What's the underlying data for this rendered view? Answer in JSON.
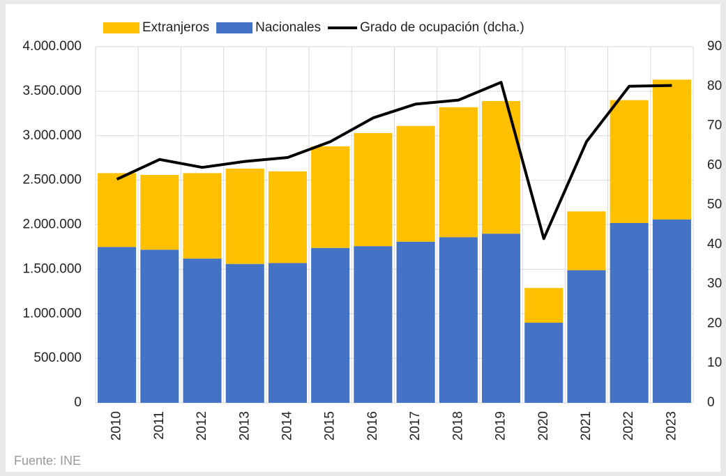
{
  "chart_data": {
    "type": "bar",
    "categories": [
      "2010",
      "2011",
      "2012",
      "2013",
      "2014",
      "2015",
      "2016",
      "2017",
      "2018",
      "2019",
      "2020",
      "2021",
      "2022",
      "2023"
    ],
    "stacked": true,
    "series": [
      {
        "name": "Nacionales",
        "color": "#4472c4",
        "values": [
          1750000,
          1720000,
          1620000,
          1560000,
          1570000,
          1740000,
          1760000,
          1810000,
          1860000,
          1900000,
          900000,
          1490000,
          2020000,
          2060000
        ]
      },
      {
        "name": "Extranjeros",
        "color": "#ffc000",
        "values": [
          830000,
          840000,
          960000,
          1070000,
          1030000,
          1140000,
          1270000,
          1300000,
          1460000,
          1490000,
          390000,
          660000,
          1380000,
          1570000
        ]
      },
      {
        "name": "Grado de ocupación (dcha.)",
        "type": "line",
        "axis": "y2",
        "color": "#000000",
        "values": [
          56.5,
          61.5,
          59.5,
          61,
          62,
          66,
          72,
          75.5,
          76.5,
          81,
          41.5,
          66,
          80,
          80.2
        ]
      }
    ],
    "legend_order": [
      "Extranjeros",
      "Nacionales",
      "Grado de ocupación (dcha.)"
    ],
    "ylim": [
      0,
      4000000
    ],
    "yticks": [
      {
        "value": 0,
        "label": "0"
      },
      {
        "value": 500000,
        "label": "500.000"
      },
      {
        "value": 1000000,
        "label": "1.000.000"
      },
      {
        "value": 1500000,
        "label": "1.500.000"
      },
      {
        "value": 2000000,
        "label": "2.000.000"
      },
      {
        "value": 2500000,
        "label": "2.500.000"
      },
      {
        "value": 3000000,
        "label": "3.000.000"
      },
      {
        "value": 3500000,
        "label": "3.500.000"
      },
      {
        "value": 4000000,
        "label": "4.000.000"
      }
    ],
    "y2lim": [
      0,
      90
    ],
    "y2ticks": [
      0,
      10,
      20,
      30,
      40,
      50,
      60,
      70,
      80,
      90
    ],
    "grid": true,
    "legend": "top",
    "source": "Fuente: INE"
  }
}
